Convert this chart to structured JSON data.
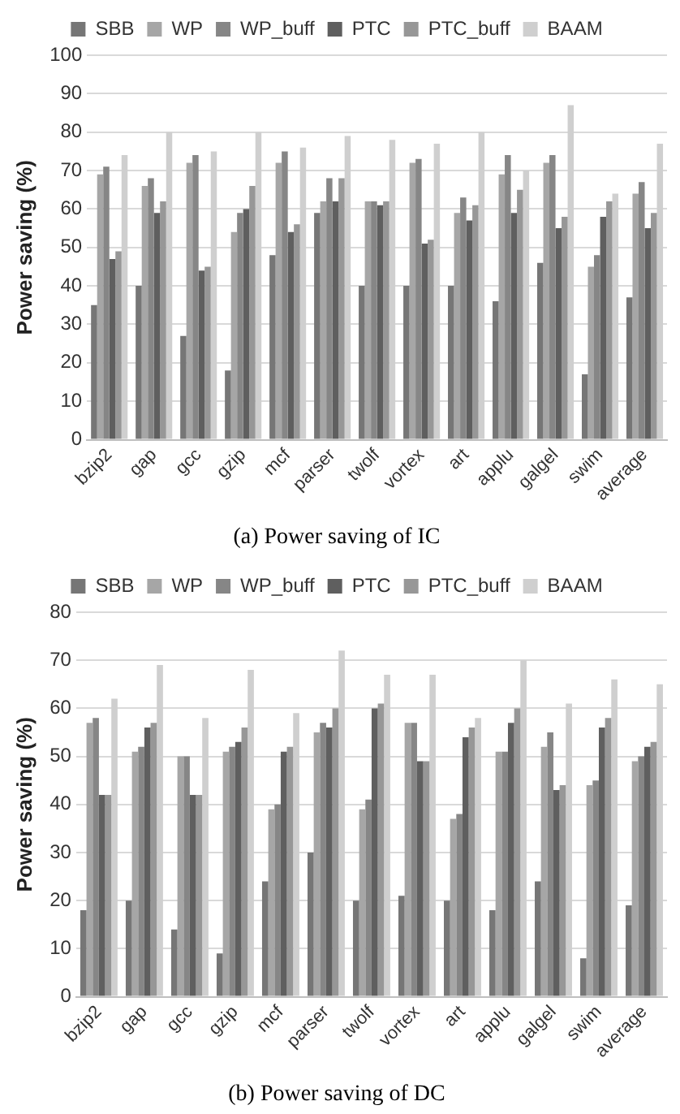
{
  "chart_data": [
    {
      "type": "bar",
      "title": "(a) Power saving of IC",
      "ylabel": "Power saving (%)",
      "categories": [
        "bzip2",
        "gap",
        "gcc",
        "gzip",
        "mcf",
        "parser",
        "twolf",
        "vortex",
        "art",
        "applu",
        "galgel",
        "swim",
        "average"
      ],
      "series": [
        {
          "name": "SBB",
          "color": "#767676",
          "values": [
            35,
            40,
            27,
            18,
            48,
            59,
            40,
            40,
            40,
            36,
            46,
            17,
            37
          ]
        },
        {
          "name": "WP",
          "color": "#a6a6a6",
          "values": [
            69,
            66,
            72,
            54,
            72,
            62,
            62,
            72,
            59,
            69,
            72,
            45,
            64
          ]
        },
        {
          "name": "WP_buff",
          "color": "#868686",
          "values": [
            71,
            68,
            74,
            59,
            75,
            68,
            62,
            73,
            63,
            74,
            74,
            48,
            67
          ]
        },
        {
          "name": "PTC",
          "color": "#5f5f5f",
          "values": [
            47,
            59,
            44,
            60,
            54,
            62,
            61,
            51,
            57,
            59,
            55,
            58,
            55
          ]
        },
        {
          "name": "PTC_buff",
          "color": "#979797",
          "values": [
            49,
            62,
            45,
            66,
            56,
            68,
            62,
            52,
            61,
            65,
            58,
            62,
            59
          ]
        },
        {
          "name": "BAAM",
          "color": "#cfcfcf",
          "values": [
            74,
            80,
            75,
            80,
            76,
            79,
            78,
            77,
            80,
            70,
            87,
            64,
            77
          ]
        }
      ],
      "ylim": [
        0,
        100
      ],
      "yticks": [
        0,
        10,
        20,
        30,
        40,
        50,
        60,
        70,
        80,
        90,
        100
      ],
      "grid": "y",
      "legend": "top"
    },
    {
      "type": "bar",
      "title": "(b) Power saving of DC",
      "ylabel": "Power saving (%)",
      "categories": [
        "bzip2",
        "gap",
        "gcc",
        "gzip",
        "mcf",
        "parser",
        "twolf",
        "vortex",
        "art",
        "applu",
        "galgel",
        "swim",
        "average"
      ],
      "series": [
        {
          "name": "SBB",
          "color": "#767676",
          "values": [
            18,
            20,
            14,
            9,
            24,
            30,
            20,
            21,
            20,
            18,
            24,
            8,
            19
          ]
        },
        {
          "name": "WP",
          "color": "#a6a6a6",
          "values": [
            57,
            51,
            50,
            51,
            39,
            55,
            39,
            57,
            37,
            51,
            52,
            44,
            49
          ]
        },
        {
          "name": "WP_buff",
          "color": "#868686",
          "values": [
            58,
            52,
            50,
            52,
            40,
            57,
            41,
            57,
            38,
            51,
            55,
            45,
            50
          ]
        },
        {
          "name": "PTC",
          "color": "#5f5f5f",
          "values": [
            42,
            56,
            42,
            53,
            51,
            56,
            60,
            49,
            54,
            57,
            43,
            56,
            52
          ]
        },
        {
          "name": "PTC_buff",
          "color": "#979797",
          "values": [
            42,
            57,
            42,
            56,
            52,
            60,
            61,
            49,
            56,
            60,
            44,
            58,
            53
          ]
        },
        {
          "name": "BAAM",
          "color": "#cfcfcf",
          "values": [
            62,
            69,
            58,
            68,
            59,
            72,
            67,
            67,
            58,
            70,
            61,
            66,
            65
          ]
        }
      ],
      "ylim": [
        0,
        80
      ],
      "yticks": [
        0,
        10,
        20,
        30,
        40,
        50,
        60,
        70,
        80
      ],
      "grid": "y",
      "legend": "top"
    }
  ]
}
